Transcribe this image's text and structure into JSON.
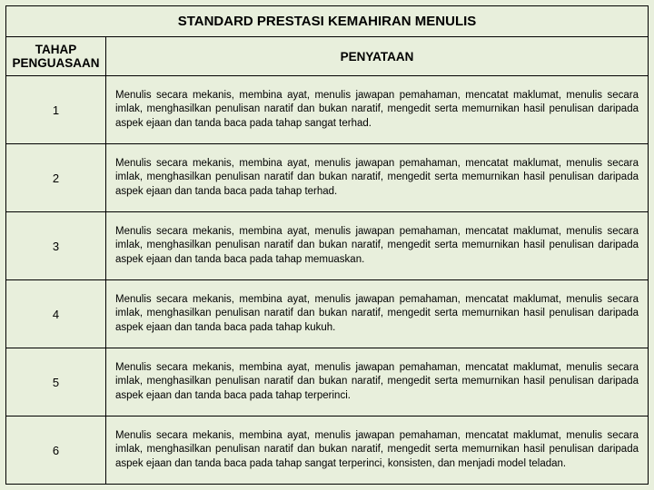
{
  "title": "STANDARD PRESTASI KEMAHIRAN MENULIS",
  "header": {
    "level": "TAHAP PENGUASAAN",
    "statement": "PENYATAAN"
  },
  "rows": [
    {
      "level": "1",
      "desc": "Menulis secara mekanis, membina ayat, menulis jawapan pemahaman, mencatat maklumat, menulis secara imlak, menghasilkan penulisan naratif dan bukan naratif, mengedit serta memurnikan hasil penulisan daripada aspek ejaan dan tanda baca pada tahap sangat terhad."
    },
    {
      "level": "2",
      "desc": "Menulis secara mekanis, membina ayat, menulis jawapan pemahaman, mencatat maklumat, menulis secara imlak, menghasilkan penulisan naratif dan bukan naratif, mengedit serta memurnikan hasil penulisan daripada aspek ejaan dan tanda baca pada tahap terhad."
    },
    {
      "level": "3",
      "desc": "Menulis secara mekanis, membina ayat, menulis jawapan pemahaman, mencatat maklumat, menulis secara imlak, menghasilkan penulisan naratif dan bukan naratif, mengedit serta memurnikan hasil penulisan daripada aspek ejaan dan tanda baca pada tahap memuaskan."
    },
    {
      "level": "4",
      "desc": "Menulis secara mekanis, membina ayat, menulis jawapan pemahaman, mencatat maklumat, menulis secara imlak, menghasilkan penulisan naratif dan bukan naratif, mengedit serta memurnikan hasil penulisan daripada aspek ejaan dan tanda baca pada tahap kukuh."
    },
    {
      "level": "5",
      "desc": "Menulis secara mekanis, membina ayat, menulis jawapan pemahaman, mencatat maklumat, menulis secara imlak, menghasilkan penulisan naratif dan bukan naratif, mengedit serta memurnikan hasil penulisan daripada aspek ejaan dan tanda baca pada tahap terperinci."
    },
    {
      "level": "6",
      "desc": "Menulis secara mekanis, membina ayat, menulis jawapan pemahaman, mencatat maklumat, menulis secara imlak, menghasilkan penulisan naratif dan bukan naratif, mengedit serta memurnikan hasil penulisan daripada aspek ejaan dan tanda baca pada tahap sangat terperinci, konsisten, dan menjadi model teladan."
    }
  ]
}
